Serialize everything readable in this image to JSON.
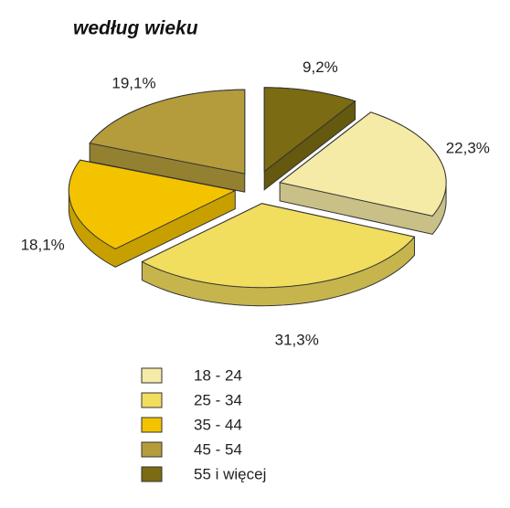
{
  "chart_data": {
    "type": "pie",
    "title": "według wieku",
    "categories": [
      "18 - 24",
      "25 - 34",
      "35 - 44",
      "45 - 54",
      "55 i więcej"
    ],
    "values": [
      22.3,
      31.3,
      18.1,
      19.1,
      9.2
    ],
    "value_labels": [
      "22,3%",
      "31,3%",
      "18,1%",
      "19,1%",
      "9,2%"
    ],
    "colors": [
      "#f5eaa6",
      "#f1dd5e",
      "#f3c300",
      "#b49c3c",
      "#7b6b12"
    ],
    "legend": "bottom"
  }
}
